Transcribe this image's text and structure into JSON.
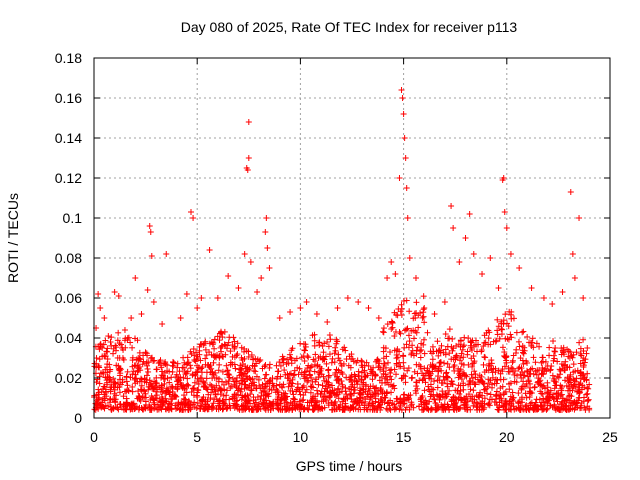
{
  "chart_data": {
    "type": "scatter",
    "title": "Day 080 of 2025, Rate Of TEC Index for receiver p113",
    "xlabel": "GPS time / hours",
    "ylabel": "ROTI / TECUs",
    "xlim": [
      0,
      25
    ],
    "ylim": [
      0,
      0.18
    ],
    "xticks": [
      0,
      5,
      10,
      15,
      20,
      25
    ],
    "xtick_labels": [
      "0",
      "5",
      "10",
      "15",
      "20",
      "25"
    ],
    "yticks": [
      0,
      0.02,
      0.04,
      0.06,
      0.08,
      0.1,
      0.12,
      0.14,
      0.16,
      0.18
    ],
    "ytick_labels": [
      "0",
      "0.02",
      "0.04",
      "0.06",
      "0.08",
      "0.1",
      "0.12",
      "0.14",
      "0.16",
      "0.18"
    ],
    "grid": true,
    "marker": "+",
    "color": "#ff0000",
    "series": [
      {
        "name": "ROTI",
        "points": [
          [
            0.1,
            0.045
          ],
          [
            0.2,
            0.062
          ],
          [
            0.3,
            0.055
          ],
          [
            0.5,
            0.05
          ],
          [
            0.8,
            0.038
          ],
          [
            1.0,
            0.063
          ],
          [
            1.2,
            0.061
          ],
          [
            1.5,
            0.044
          ],
          [
            1.8,
            0.05
          ],
          [
            2.0,
            0.07
          ],
          [
            2.3,
            0.052
          ],
          [
            2.6,
            0.064
          ],
          [
            2.7,
            0.096
          ],
          [
            2.75,
            0.093
          ],
          [
            2.8,
            0.081
          ],
          [
            2.9,
            0.058
          ],
          [
            3.3,
            0.047
          ],
          [
            3.5,
            0.082
          ],
          [
            4.2,
            0.05
          ],
          [
            4.5,
            0.062
          ],
          [
            4.7,
            0.103
          ],
          [
            4.8,
            0.1
          ],
          [
            5.0,
            0.055
          ],
          [
            5.2,
            0.06
          ],
          [
            5.6,
            0.084
          ],
          [
            6.0,
            0.06
          ],
          [
            6.5,
            0.071
          ],
          [
            7.0,
            0.065
          ],
          [
            7.3,
            0.082
          ],
          [
            7.4,
            0.125
          ],
          [
            7.45,
            0.124
          ],
          [
            7.5,
            0.148
          ],
          [
            7.5,
            0.13
          ],
          [
            7.6,
            0.078
          ],
          [
            7.9,
            0.063
          ],
          [
            8.1,
            0.07
          ],
          [
            8.3,
            0.093
          ],
          [
            8.35,
            0.1
          ],
          [
            8.4,
            0.085
          ],
          [
            8.5,
            0.075
          ],
          [
            9.0,
            0.05
          ],
          [
            9.5,
            0.053
          ],
          [
            10.0,
            0.055
          ],
          [
            10.3,
            0.058
          ],
          [
            10.8,
            0.052
          ],
          [
            11.3,
            0.048
          ],
          [
            11.8,
            0.055
          ],
          [
            12.3,
            0.06
          ],
          [
            12.8,
            0.058
          ],
          [
            13.3,
            0.055
          ],
          [
            13.8,
            0.05
          ],
          [
            14.2,
            0.07
          ],
          [
            14.4,
            0.078
          ],
          [
            14.6,
            0.072
          ],
          [
            14.8,
            0.12
          ],
          [
            14.9,
            0.164
          ],
          [
            14.95,
            0.16
          ],
          [
            15.0,
            0.152
          ],
          [
            15.05,
            0.14
          ],
          [
            15.1,
            0.13
          ],
          [
            15.15,
            0.115
          ],
          [
            15.2,
            0.1
          ],
          [
            15.3,
            0.08
          ],
          [
            15.6,
            0.07
          ],
          [
            16.0,
            0.055
          ],
          [
            16.5,
            0.052
          ],
          [
            17.0,
            0.058
          ],
          [
            17.3,
            0.106
          ],
          [
            17.4,
            0.095
          ],
          [
            17.7,
            0.078
          ],
          [
            18.0,
            0.09
          ],
          [
            18.2,
            0.102
          ],
          [
            18.4,
            0.082
          ],
          [
            18.8,
            0.072
          ],
          [
            19.2,
            0.08
          ],
          [
            19.6,
            0.065
          ],
          [
            19.8,
            0.119
          ],
          [
            19.85,
            0.12
          ],
          [
            19.9,
            0.103
          ],
          [
            20.0,
            0.095
          ],
          [
            20.2,
            0.082
          ],
          [
            20.6,
            0.075
          ],
          [
            21.2,
            0.065
          ],
          [
            21.8,
            0.06
          ],
          [
            22.2,
            0.057
          ],
          [
            22.7,
            0.063
          ],
          [
            23.1,
            0.113
          ],
          [
            23.2,
            0.082
          ],
          [
            23.3,
            0.07
          ],
          [
            23.5,
            0.1
          ],
          [
            23.7,
            0.06
          ],
          [
            23.9,
            0.035
          ]
        ]
      }
    ]
  }
}
